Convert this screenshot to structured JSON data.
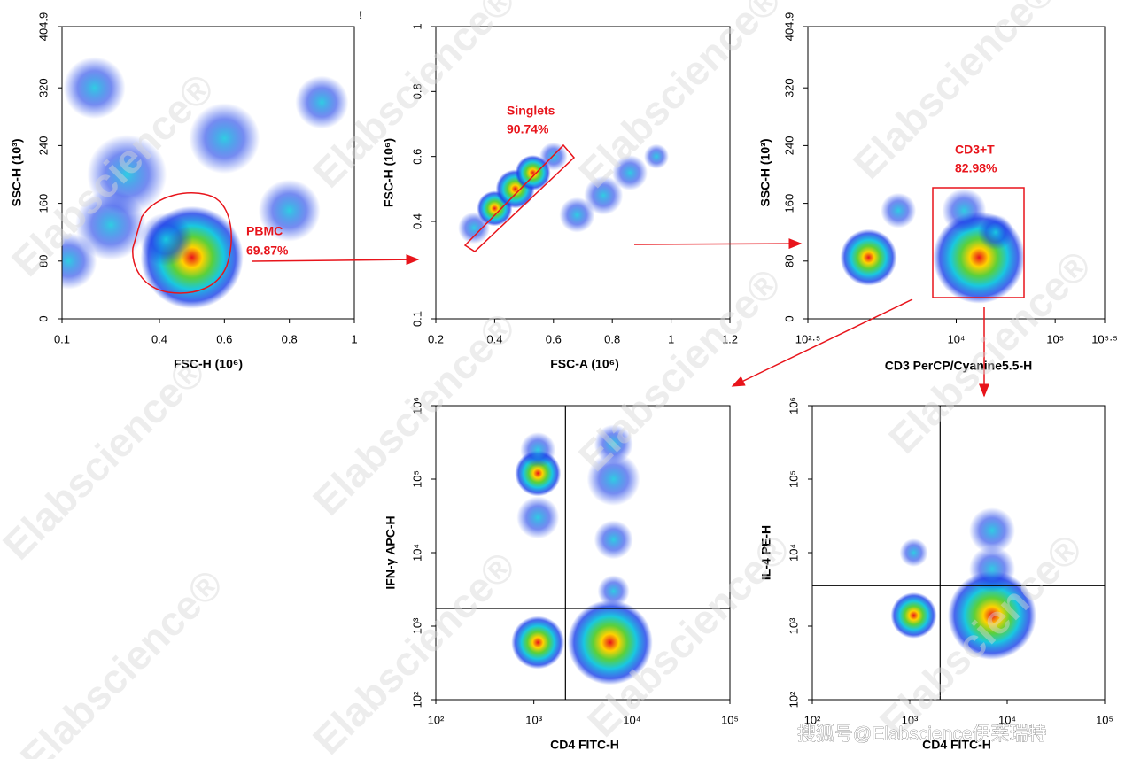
{
  "chart_data": [
    {
      "type": "scatter",
      "x_label": "FSC-H (10⁶)",
      "y_label": "SSC-H (10³)",
      "xlim": [
        0.1,
        1
      ],
      "xticks": [
        0.1,
        0.4,
        0.6,
        0.8,
        1
      ],
      "ylim": [
        0,
        404.9
      ],
      "yticks": [
        0,
        80,
        160,
        240,
        320,
        404.9
      ],
      "x": [
        0.5,
        0.42,
        0.12,
        0.25,
        0.3,
        0.6,
        0.8,
        0.2,
        0.9
      ],
      "y": [
        85,
        110,
        80,
        130,
        200,
        250,
        150,
        320,
        300
      ],
      "annotations": [
        "PBMC",
        "69.87%"
      ],
      "mark": "!"
    },
    {
      "type": "scatter",
      "x_label": "FSC-A (10⁶)",
      "y_label": "FSC-H (10⁶)",
      "xlim": [
        0.2,
        1.2
      ],
      "xticks": [
        0.2,
        0.4,
        0.6,
        0.8,
        1,
        1.2
      ],
      "ylim": [
        0.1,
        1
      ],
      "yticks": [
        0.1,
        0.4,
        0.6,
        0.8,
        1
      ],
      "x": [
        0.33,
        0.4,
        0.47,
        0.53,
        0.6,
        0.68,
        0.77,
        0.86,
        0.95
      ],
      "y": [
        0.38,
        0.44,
        0.5,
        0.55,
        0.6,
        0.42,
        0.48,
        0.55,
        0.6
      ],
      "annotations": [
        "Singlets",
        "90.74%"
      ]
    },
    {
      "type": "scatter",
      "x_label": "CD3 PerCP/Cyanine5.5-H",
      "y_label": "SSC-H (10³)",
      "log_x": true,
      "xlim": [
        316.2,
        316228
      ],
      "xticks": [
        {
          "value": 316.2,
          "label": "10²·⁵"
        },
        {
          "value": 10000,
          "label": "10⁴"
        },
        {
          "value": 100000,
          "label": "10⁵"
        },
        {
          "value": 316228,
          "label": "10⁵·⁵"
        }
      ],
      "ylim": [
        0,
        404.9
      ],
      "yticks": [
        0,
        80,
        160,
        240,
        320,
        404.9
      ],
      "x": [
        1300,
        2600,
        17000,
        12000,
        25000
      ],
      "y": [
        85,
        150,
        85,
        150,
        120
      ],
      "annotations": [
        "CD3+T",
        "82.98%"
      ]
    },
    {
      "type": "scatter",
      "x_label": "CD4 FITC-H",
      "y_label": "IFN-γ APC-H",
      "log_x": true,
      "log_y": true,
      "xlim": [
        100,
        100000
      ],
      "xticks": [
        {
          "value": 100,
          "label": "10²"
        },
        {
          "value": 1000,
          "label": "10³"
        },
        {
          "value": 10000,
          "label": "10⁴"
        },
        {
          "value": 100000,
          "label": "10⁵"
        }
      ],
      "ylim": [
        100,
        1000000
      ],
      "yticks": [
        {
          "value": 100,
          "label": "10²"
        },
        {
          "value": 1000,
          "label": "10³"
        },
        {
          "value": 10000,
          "label": "10⁴"
        },
        {
          "value": 100000,
          "label": "10⁵"
        },
        {
          "value": 1000000,
          "label": "10⁶"
        }
      ],
      "x": [
        1100,
        6000,
        1100,
        1100,
        1100,
        6500,
        6500,
        6500,
        6500
      ],
      "y": [
        600,
        600,
        30000,
        120000,
        250000,
        100000,
        300000,
        15000,
        3000
      ],
      "quadrant": [
        2100,
        1740
      ]
    },
    {
      "type": "scatter",
      "x_label": "CD4 FITC-H",
      "y_label": "IL-4 PE-H",
      "log_x": true,
      "log_y": true,
      "xlim": [
        100,
        100000
      ],
      "xticks": [
        {
          "value": 100,
          "label": "10²"
        },
        {
          "value": 1000,
          "label": "10³"
        },
        {
          "value": 10000,
          "label": "10⁴"
        },
        {
          "value": 100000,
          "label": "10⁵"
        }
      ],
      "ylim": [
        100,
        1000000
      ],
      "yticks": [
        {
          "value": 100,
          "label": "10²"
        },
        {
          "value": 1000,
          "label": "10³"
        },
        {
          "value": 10000,
          "label": "10⁴"
        },
        {
          "value": 100000,
          "label": "10⁵"
        },
        {
          "value": 1000000,
          "label": "10⁶"
        }
      ],
      "x": [
        1100,
        7000,
        7000,
        7000,
        1100
      ],
      "y": [
        1400,
        1400,
        20000,
        6000,
        10000
      ],
      "quadrant": [
        2050,
        3550
      ]
    }
  ],
  "watermark": "Elabscience®",
  "source": "搜狐号@Elabscience伊莱瑞特"
}
